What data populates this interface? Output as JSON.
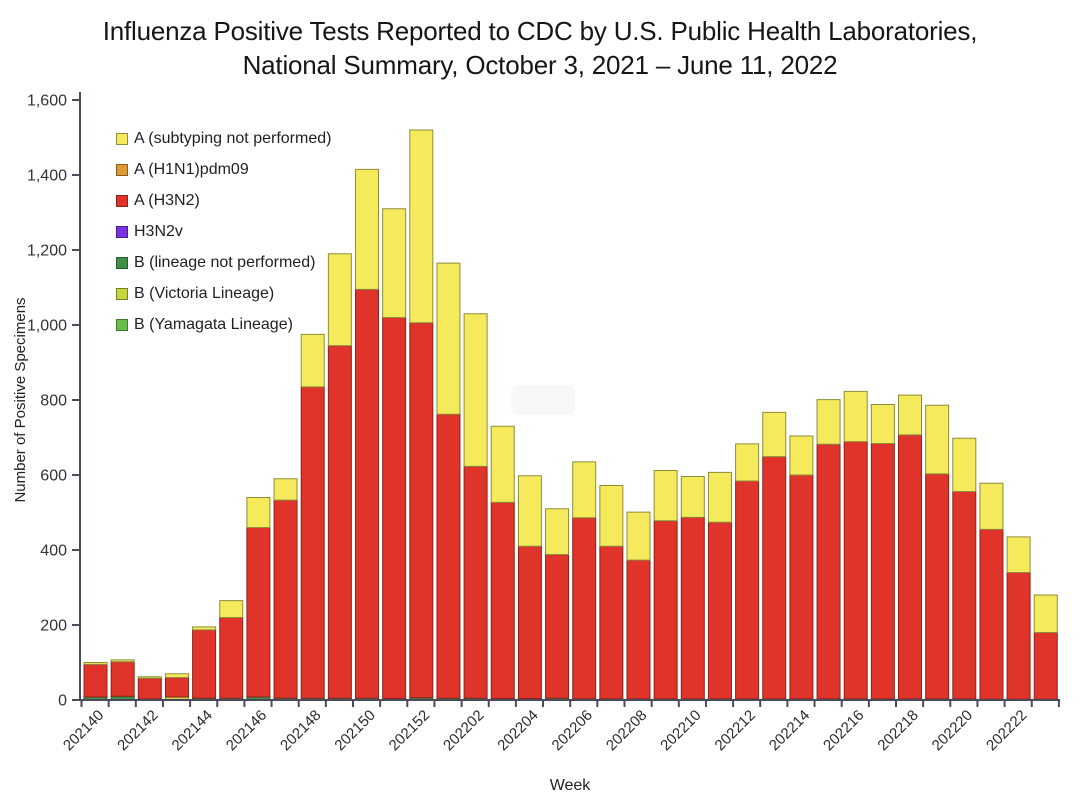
{
  "title": {
    "line1": "Influenza Positive Tests Reported to CDC by U.S. Public Health Laboratories,",
    "line2": "National Summary, October 3, 2021 – June 11, 2022"
  },
  "axis_color": "#4A4A5C",
  "chart_data": {
    "type": "bar",
    "subtype": "stacked",
    "title": "Influenza Positive Tests Reported to CDC by U.S. Public Health Laboratories, National Summary, October 3, 2021 – June 11, 2022",
    "xlabel": "Week",
    "ylabel": "Number of Positive Specimens",
    "ylim": [
      0,
      1600
    ],
    "ytick_interval": 200,
    "ytick_labels": [
      "0",
      "200",
      "400",
      "600",
      "800",
      "1,000",
      "1,200",
      "1,400",
      "1,600"
    ],
    "grid": "off",
    "legend_position": "upper-left-inside",
    "x_label_every": 2,
    "categories": [
      "202140",
      "202141",
      "202142",
      "202143",
      "202144",
      "202145",
      "202146",
      "202147",
      "202148",
      "202149",
      "202150",
      "202151",
      "202152",
      "202201",
      "202202",
      "202203",
      "202204",
      "202205",
      "202206",
      "202207",
      "202208",
      "202209",
      "202210",
      "202211",
      "202212",
      "202213",
      "202214",
      "202215",
      "202216",
      "202217",
      "202218",
      "202219",
      "202220",
      "202221",
      "202222",
      "202223"
    ],
    "legend": [
      {
        "label": "A (subtyping not performed)",
        "color": "#F5E95C",
        "border": "#8D8D3A"
      },
      {
        "label": "A (H1N1)pdm09",
        "color": "#E09A35",
        "border": "#8A5A1A"
      },
      {
        "label": "A (H3N2)",
        "color": "#E0332A",
        "border": "#8A241C"
      },
      {
        "label": "H3N2v",
        "color": "#7A2FE0",
        "border": "#4A1A8A"
      },
      {
        "label": "B (lineage not performed)",
        "color": "#3F8F44",
        "border": "#275C2B"
      },
      {
        "label": "B (Victoria Lineage)",
        "color": "#C8D63E",
        "border": "#77821F"
      },
      {
        "label": "B (Yamagata Lineage)",
        "color": "#67BE4C",
        "border": "#3B7A2A"
      }
    ],
    "series": [
      {
        "name": "B (Victoria Lineage)",
        "color": "#C8D63E",
        "border": "#77821F",
        "values": [
          0,
          0,
          0,
          8,
          0,
          0,
          0,
          0,
          0,
          0,
          0,
          0,
          0,
          0,
          0,
          0,
          0,
          0,
          0,
          0,
          0,
          0,
          0,
          0,
          0,
          0,
          0,
          0,
          0,
          0,
          0,
          0,
          0,
          0,
          0,
          0
        ]
      },
      {
        "name": "B (lineage not performed)",
        "color": "#3F8F44",
        "border": "#275C2B",
        "values": [
          8,
          10,
          3,
          0,
          5,
          5,
          8,
          5,
          5,
          5,
          5,
          4,
          6,
          5,
          5,
          4,
          4,
          5,
          3,
          3,
          3,
          3,
          3,
          3,
          3,
          3,
          3,
          3,
          3,
          3,
          3,
          3,
          3,
          2,
          2,
          2
        ]
      },
      {
        "name": "A (H3N2)",
        "color": "#E0332A",
        "border": "#8A241C",
        "values": [
          87,
          92,
          55,
          52,
          182,
          215,
          452,
          528,
          830,
          940,
          1090,
          1016,
          1000,
          757,
          618,
          523,
          406,
          383,
          483,
          407,
          370,
          475,
          484,
          471,
          581,
          646,
          597,
          679,
          686,
          681,
          704,
          600,
          553,
          453,
          338,
          178
        ]
      },
      {
        "name": "A (subtyping not performed)",
        "color": "#F5E95C",
        "border": "#8D8D3A",
        "values": [
          5,
          5,
          4,
          10,
          8,
          45,
          80,
          57,
          140,
          245,
          320,
          290,
          514,
          403,
          407,
          203,
          188,
          122,
          149,
          162,
          128,
          134,
          109,
          133,
          99,
          118,
          104,
          119,
          134,
          104,
          106,
          183,
          142,
          123,
          95,
          100
        ]
      }
    ]
  }
}
